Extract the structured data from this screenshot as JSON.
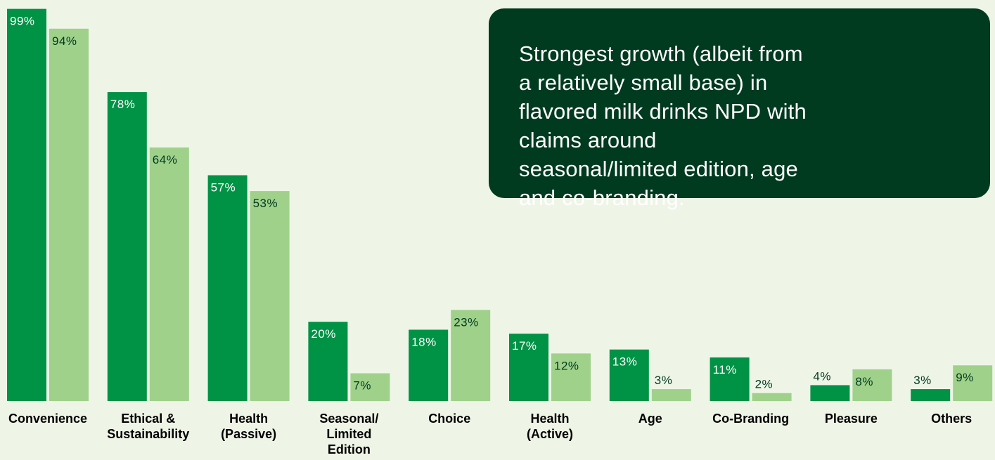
{
  "callout": {
    "text": "Strongest growth (albeit from a relatively small base) in flavored milk drinks NPD with claims around seasonal/limited edition, age and co-branding."
  },
  "colors": {
    "background": "#eef5e6",
    "series_dark": "#009245",
    "series_light": "#9fd18b",
    "callout_bg": "#003a1f"
  },
  "chart_data": {
    "type": "bar",
    "categories": [
      "Convenience",
      "Ethical & Sustainability",
      "Health (Passive)",
      "Seasonal/ Limited Edition",
      "Choice",
      "Health (Active)",
      "Age",
      "Co-Branding",
      "Pleasure",
      "Others"
    ],
    "category_lines": [
      [
        "Convenience"
      ],
      [
        "Ethical &",
        "Sustainability"
      ],
      [
        "Health",
        "(Passive)"
      ],
      [
        "Seasonal/",
        "Limited",
        "Edition"
      ],
      [
        "Choice"
      ],
      [
        "Health",
        "(Active)"
      ],
      [
        "Age"
      ],
      [
        "Co-Branding"
      ],
      [
        "Pleasure"
      ],
      [
        "Others"
      ]
    ],
    "series": [
      {
        "values": [
          99,
          78,
          57,
          20,
          18,
          17,
          13,
          11,
          4,
          3
        ],
        "labels": [
          "99%",
          "78%",
          "57%",
          "20%",
          "18%",
          "17%",
          "13%",
          "11%",
          "4%",
          "3%"
        ],
        "color": "#009245"
      },
      {
        "values": [
          94,
          64,
          53,
          7,
          23,
          12,
          3,
          2,
          8,
          9
        ],
        "labels": [
          "94%",
          "64%",
          "53%",
          "7%",
          "23%",
          "12%",
          "3%",
          "2%",
          "8%",
          "9%"
        ],
        "color": "#9fd18b"
      }
    ],
    "ylim": [
      0,
      100
    ],
    "title": "",
    "xlabel": "",
    "ylabel": "",
    "grid": false,
    "legend": "none"
  }
}
